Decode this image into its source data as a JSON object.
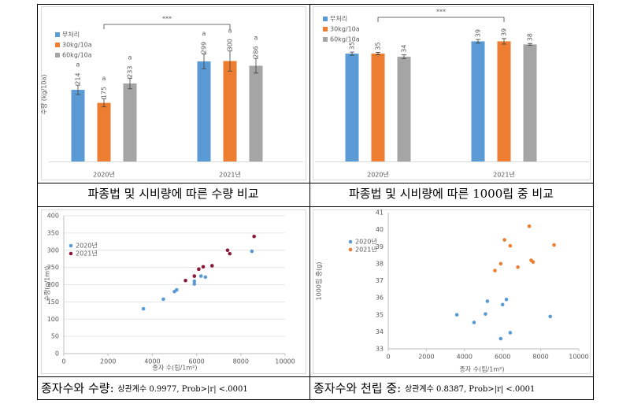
{
  "chart_data": [
    {
      "type": "bar",
      "y_label": "수량 (kg/10a)",
      "categories": [
        "2020년",
        "2021년"
      ],
      "ylim": [
        0,
        400
      ],
      "significance": "***",
      "series": [
        {
          "name": "무처리",
          "color": "#5b9bd5",
          "values": [
            214,
            299
          ],
          "errors": [
            14,
            22
          ],
          "letters": [
            "a",
            "a"
          ]
        },
        {
          "name": "30kg/10a",
          "color": "#ed7d31",
          "values": [
            175,
            300
          ],
          "errors": [
            12,
            30
          ],
          "letters": [
            "a",
            "a"
          ]
        },
        {
          "name": "60kg/10a",
          "color": "#a5a5a5",
          "values": [
            233,
            286
          ],
          "errors": [
            16,
            22
          ],
          "letters": [
            "a",
            "a"
          ]
        }
      ]
    },
    {
      "type": "bar",
      "categories": [
        "2020년",
        "2021년"
      ],
      "ylim": [
        0,
        45
      ],
      "significance": "***",
      "series": [
        {
          "name": "무처리",
          "color": "#5b9bd5",
          "values": [
            35,
            39
          ],
          "errors": [
            0.5,
            0.6
          ]
        },
        {
          "name": "30kg/10a",
          "color": "#ed7d31",
          "values": [
            35,
            39
          ],
          "errors": [
            0.4,
            0.9
          ]
        },
        {
          "name": "60kg/10a",
          "color": "#a5a5a5",
          "values": [
            34,
            38
          ],
          "errors": [
            0.6,
            0.3
          ]
        }
      ]
    },
    {
      "type": "scatter",
      "x_label": "종자 수(립/1m²)",
      "y_label": "수량(g/1m²)",
      "xlim": [
        0,
        10000
      ],
      "xticks": [
        0,
        2000,
        4000,
        6000,
        8000,
        10000
      ],
      "ylim": [
        0,
        400
      ],
      "yticks": [
        0,
        50,
        100,
        150,
        200,
        250,
        300,
        350,
        400
      ],
      "grid": true,
      "series": [
        {
          "name": "2020년",
          "color": "#5b9bd5",
          "x": [
            3600,
            4500,
            5000,
            5100,
            5900,
            5900,
            6200,
            6400,
            8500
          ],
          "values": [
            130,
            158,
            180,
            185,
            202,
            210,
            225,
            222,
            297
          ]
        },
        {
          "name": "2021년",
          "color": "#8b1a3a",
          "x": [
            5500,
            5900,
            6100,
            6300,
            6700,
            7400,
            7500,
            8600
          ],
          "values": [
            212,
            225,
            245,
            252,
            255,
            300,
            290,
            340
          ]
        }
      ]
    },
    {
      "type": "scatter",
      "x_label": "종자 수(립/1m²)",
      "y_label": "1000립 중(g)",
      "xlim": [
        0,
        10000
      ],
      "xticks": [
        0,
        2000,
        4000,
        6000,
        8000,
        10000
      ],
      "ylim": [
        33,
        41
      ],
      "yticks": [
        33,
        34,
        35,
        36,
        37,
        38,
        39,
        40,
        41
      ],
      "grid": false,
      "series": [
        {
          "name": "2020년",
          "color": "#5b9bd5",
          "x": [
            3600,
            4500,
            5100,
            5200,
            5900,
            6000,
            6200,
            6400,
            8500
          ],
          "values": [
            35.0,
            34.55,
            35.05,
            35.8,
            33.6,
            35.6,
            35.9,
            33.95,
            34.9
          ]
        },
        {
          "name": "2021년",
          "color": "#ed7d31",
          "x": [
            5600,
            5900,
            6100,
            6400,
            6800,
            7400,
            7500,
            7600,
            8700
          ],
          "values": [
            37.6,
            38.0,
            39.4,
            39.05,
            37.8,
            40.2,
            38.2,
            38.1,
            39.1
          ]
        }
      ]
    }
  ],
  "captions": [
    {
      "main": "파종법 및 시비량에 따른 수량 비교"
    },
    {
      "main": "파종법 및 시비량에 따른 1000립 중 비교"
    },
    {
      "main": "종자수와 수량:",
      "stats": "상관계수 0.9977, Prob>|r| <.0001"
    },
    {
      "main": "종자수와 천립 중:",
      "stats": "상관계수 0.8387, Prob>|r| <.0001"
    }
  ]
}
